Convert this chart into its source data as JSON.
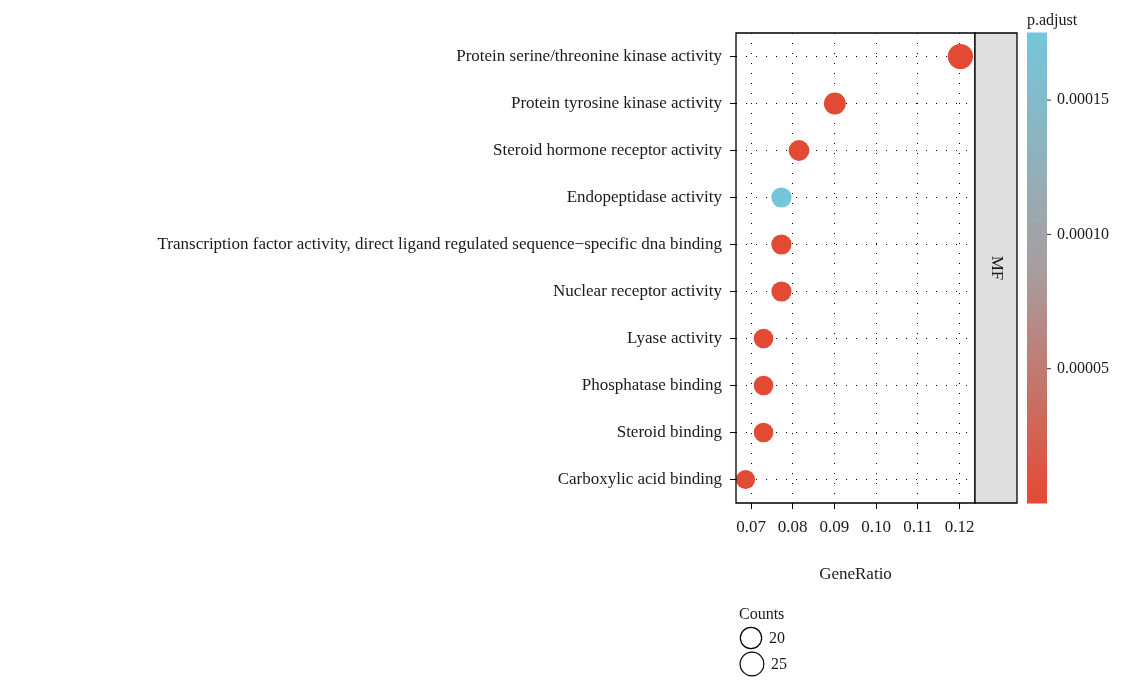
{
  "chart_data": {
    "type": "bubble",
    "orientation": "horizontal",
    "categories": [
      "Protein serine/threonine kinase activity",
      "Protein tyrosine kinase activity",
      "Steroid hormone receptor activity",
      "Endopeptidase activity",
      "Transcription factor activity, direct ligand regulated sequence−specific dna binding",
      "Nuclear receptor activity",
      "Lyase activity",
      "Phosphatase binding",
      "Steroid binding",
      "Carboxylic acid binding"
    ],
    "values": [
      0.1202,
      0.0901,
      0.0815,
      0.0773,
      0.0773,
      0.0773,
      0.073,
      0.073,
      0.073,
      0.0687
    ],
    "sizes": [
      28,
      21,
      19,
      18,
      18,
      18,
      17,
      17,
      17,
      16
    ],
    "size_legend": [
      20,
      25
    ],
    "cvalues": [
      0,
      0,
      0,
      0.000175,
      0,
      0,
      0,
      0,
      0,
      0
    ],
    "clim": [
      0,
      0.000175
    ],
    "cticks": [
      {
        "value": 5e-05,
        "label": "0.00005"
      },
      {
        "value": 0.0001,
        "label": "0.00010"
      },
      {
        "value": 0.00015,
        "label": "0.00015"
      }
    ],
    "clabel": "p.adjust",
    "legend_title": "Counts",
    "xlabel": "GeneRatio",
    "xlim": [
      0.0664,
      0.1237
    ],
    "xticks": [
      0.07,
      0.08,
      0.09,
      {
        "value": 0.1,
        "label": "0.10"
      },
      0.11,
      0.12
    ],
    "grid": true,
    "marker": "circle",
    "annotations": [
      "MF"
    ]
  }
}
